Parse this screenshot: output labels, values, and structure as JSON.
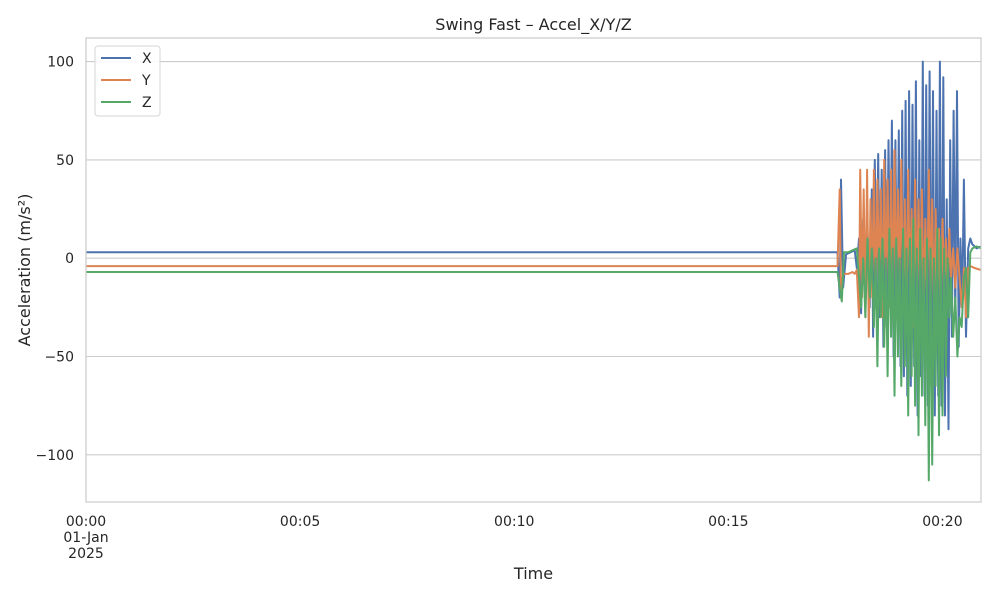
{
  "chart_data": {
    "type": "line",
    "title": "Swing Fast – Accel_X/Y/Z",
    "xlabel": "Time",
    "ylabel": "Acceleration (m/s²)",
    "xlim_minutes": [
      0,
      20.9
    ],
    "ylim": [
      -124,
      112
    ],
    "grid": "horizontal",
    "legend_position": "top-left",
    "x_ticks": [
      {
        "value_minutes": 0,
        "label": [
          "00:00",
          "01-Jan",
          "2025"
        ]
      },
      {
        "value_minutes": 5,
        "label": [
          "00:05"
        ]
      },
      {
        "value_minutes": 10,
        "label": [
          "00:10"
        ]
      },
      {
        "value_minutes": 15,
        "label": [
          "00:15"
        ]
      },
      {
        "value_minutes": 20,
        "label": [
          "00:20"
        ]
      }
    ],
    "y_ticks": [
      {
        "value": 100,
        "label": "100"
      },
      {
        "value": 50,
        "label": "50"
      },
      {
        "value": 0,
        "label": "0"
      },
      {
        "value": -50,
        "label": "−50"
      },
      {
        "value": -100,
        "label": "−100"
      }
    ],
    "series": [
      {
        "name": "X",
        "color": "#4c72b0",
        "points": [
          [
            0,
            3
          ],
          [
            17.55,
            3
          ],
          [
            17.6,
            -20
          ],
          [
            17.63,
            40
          ],
          [
            17.68,
            -15
          ],
          [
            17.75,
            2
          ],
          [
            17.85,
            3
          ],
          [
            17.95,
            4
          ],
          [
            18.0,
            -5
          ],
          [
            18.05,
            10
          ],
          [
            18.1,
            -28
          ],
          [
            18.15,
            20
          ],
          [
            18.2,
            -10
          ],
          [
            18.25,
            15
          ],
          [
            18.3,
            -25
          ],
          [
            18.35,
            35
          ],
          [
            18.38,
            -40
          ],
          [
            18.42,
            50
          ],
          [
            18.46,
            -20
          ],
          [
            18.5,
            53
          ],
          [
            18.54,
            -30
          ],
          [
            18.58,
            45
          ],
          [
            18.62,
            -45
          ],
          [
            18.66,
            55
          ],
          [
            18.7,
            -35
          ],
          [
            18.74,
            60
          ],
          [
            18.78,
            -20
          ],
          [
            18.82,
            70
          ],
          [
            18.86,
            -50
          ],
          [
            18.9,
            60
          ],
          [
            18.94,
            -30
          ],
          [
            18.98,
            65
          ],
          [
            19.02,
            -55
          ],
          [
            19.06,
            75
          ],
          [
            19.1,
            -60
          ],
          [
            19.14,
            80
          ],
          [
            19.18,
            -70
          ],
          [
            19.22,
            85
          ],
          [
            19.26,
            -65
          ],
          [
            19.3,
            78
          ],
          [
            19.34,
            -55
          ],
          [
            19.38,
            90
          ],
          [
            19.42,
            -80
          ],
          [
            19.46,
            60
          ],
          [
            19.5,
            -60
          ],
          [
            19.54,
            100
          ],
          [
            19.58,
            -70
          ],
          [
            19.62,
            88
          ],
          [
            19.66,
            -75
          ],
          [
            19.7,
            95
          ],
          [
            19.74,
            -60
          ],
          [
            19.78,
            85
          ],
          [
            19.82,
            -80
          ],
          [
            19.86,
            75
          ],
          [
            19.9,
            -70
          ],
          [
            19.94,
            100
          ],
          [
            19.98,
            -75
          ],
          [
            20.02,
            92
          ],
          [
            20.06,
            -80
          ],
          [
            20.1,
            30
          ],
          [
            20.14,
            -87
          ],
          [
            20.18,
            60
          ],
          [
            20.22,
            -40
          ],
          [
            20.26,
            75
          ],
          [
            20.3,
            -30
          ],
          [
            20.34,
            85
          ],
          [
            20.38,
            -45
          ],
          [
            20.42,
            10
          ],
          [
            20.46,
            -25
          ],
          [
            20.5,
            40
          ],
          [
            20.55,
            -40
          ],
          [
            20.6,
            5
          ],
          [
            20.65,
            10
          ],
          [
            20.7,
            7
          ],
          [
            20.8,
            5
          ],
          [
            20.9,
            6
          ]
        ]
      },
      {
        "name": "Y",
        "color": "#dd8452",
        "points": [
          [
            0,
            -4
          ],
          [
            17.55,
            -4
          ],
          [
            17.6,
            35
          ],
          [
            17.63,
            -20
          ],
          [
            17.68,
            -8
          ],
          [
            17.8,
            -8
          ],
          [
            17.9,
            -7
          ],
          [
            17.95,
            -8
          ],
          [
            18.0,
            -6
          ],
          [
            18.05,
            -30
          ],
          [
            18.08,
            45
          ],
          [
            18.12,
            -20
          ],
          [
            18.16,
            35
          ],
          [
            18.2,
            -30
          ],
          [
            18.24,
            45
          ],
          [
            18.28,
            -40
          ],
          [
            18.32,
            30
          ],
          [
            18.36,
            -20
          ],
          [
            18.4,
            45
          ],
          [
            18.44,
            -25
          ],
          [
            18.48,
            40
          ],
          [
            18.52,
            -15
          ],
          [
            18.56,
            35
          ],
          [
            18.6,
            -30
          ],
          [
            18.64,
            50
          ],
          [
            18.68,
            -20
          ],
          [
            18.72,
            40
          ],
          [
            18.76,
            -25
          ],
          [
            18.8,
            45
          ],
          [
            18.84,
            -30
          ],
          [
            18.88,
            55
          ],
          [
            18.92,
            -20
          ],
          [
            18.96,
            35
          ],
          [
            19.0,
            -15
          ],
          [
            19.04,
            50
          ],
          [
            19.08,
            -25
          ],
          [
            19.12,
            30
          ],
          [
            19.16,
            -30
          ],
          [
            19.2,
            45
          ],
          [
            19.24,
            -20
          ],
          [
            19.28,
            25
          ],
          [
            19.32,
            -35
          ],
          [
            19.36,
            40
          ],
          [
            19.4,
            -25
          ],
          [
            19.44,
            30
          ],
          [
            19.48,
            -20
          ],
          [
            19.52,
            35
          ],
          [
            19.56,
            -30
          ],
          [
            19.6,
            20
          ],
          [
            19.64,
            -25
          ],
          [
            19.68,
            45
          ],
          [
            19.72,
            -20
          ],
          [
            19.76,
            30
          ],
          [
            19.8,
            -35
          ],
          [
            19.84,
            25
          ],
          [
            19.88,
            -20
          ],
          [
            19.92,
            15
          ],
          [
            19.96,
            -30
          ],
          [
            20.0,
            20
          ],
          [
            20.04,
            -15
          ],
          [
            20.08,
            10
          ],
          [
            20.12,
            -20
          ],
          [
            20.16,
            15
          ],
          [
            20.2,
            -10
          ],
          [
            20.25,
            5
          ],
          [
            20.3,
            -15
          ],
          [
            20.35,
            5
          ],
          [
            20.4,
            -10
          ],
          [
            20.45,
            -25
          ],
          [
            20.5,
            -5
          ],
          [
            20.55,
            -30
          ],
          [
            20.6,
            -5
          ],
          [
            20.65,
            -4
          ],
          [
            20.75,
            -5
          ],
          [
            20.9,
            -6
          ]
        ]
      },
      {
        "name": "Z",
        "color": "#55a868",
        "points": [
          [
            0,
            -7
          ],
          [
            17.55,
            -7
          ],
          [
            17.6,
            -15
          ],
          [
            17.65,
            -22
          ],
          [
            17.7,
            3
          ],
          [
            17.8,
            3
          ],
          [
            17.9,
            4
          ],
          [
            18.0,
            5
          ],
          [
            18.05,
            -10
          ],
          [
            18.1,
            -25
          ],
          [
            18.15,
            0
          ],
          [
            18.2,
            -30
          ],
          [
            18.25,
            10
          ],
          [
            18.3,
            -20
          ],
          [
            18.35,
            5
          ],
          [
            18.4,
            -35
          ],
          [
            18.44,
            0
          ],
          [
            18.48,
            -55
          ],
          [
            18.52,
            5
          ],
          [
            18.56,
            -30
          ],
          [
            18.6,
            10
          ],
          [
            18.64,
            -45
          ],
          [
            18.68,
            0
          ],
          [
            18.72,
            -60
          ],
          [
            18.76,
            15
          ],
          [
            18.8,
            -40
          ],
          [
            18.84,
            5
          ],
          [
            18.88,
            -70
          ],
          [
            18.92,
            10
          ],
          [
            18.96,
            -50
          ],
          [
            19.0,
            0
          ],
          [
            19.04,
            -65
          ],
          [
            19.08,
            15
          ],
          [
            19.12,
            -55
          ],
          [
            19.16,
            5
          ],
          [
            19.2,
            -80
          ],
          [
            19.24,
            10
          ],
          [
            19.28,
            -60
          ],
          [
            19.32,
            20
          ],
          [
            19.36,
            -75
          ],
          [
            19.4,
            5
          ],
          [
            19.44,
            -90
          ],
          [
            19.48,
            15
          ],
          [
            19.52,
            -70
          ],
          [
            19.56,
            0
          ],
          [
            19.6,
            -85
          ],
          [
            19.64,
            10
          ],
          [
            19.68,
            -113
          ],
          [
            19.72,
            5
          ],
          [
            19.76,
            -105
          ],
          [
            19.8,
            0
          ],
          [
            19.84,
            -65
          ],
          [
            19.88,
            15
          ],
          [
            19.92,
            -90
          ],
          [
            19.96,
            10
          ],
          [
            20.0,
            -80
          ],
          [
            20.04,
            5
          ],
          [
            20.08,
            -60
          ],
          [
            20.12,
            0
          ],
          [
            20.16,
            -30
          ],
          [
            20.2,
            -10
          ],
          [
            20.25,
            -40
          ],
          [
            20.3,
            -20
          ],
          [
            20.35,
            -50
          ],
          [
            20.4,
            -30
          ],
          [
            20.45,
            -35
          ],
          [
            20.5,
            -10
          ],
          [
            20.55,
            -5
          ],
          [
            20.6,
            -30
          ],
          [
            20.65,
            3
          ],
          [
            20.7,
            5
          ],
          [
            20.8,
            6
          ],
          [
            20.9,
            5
          ]
        ]
      }
    ]
  }
}
